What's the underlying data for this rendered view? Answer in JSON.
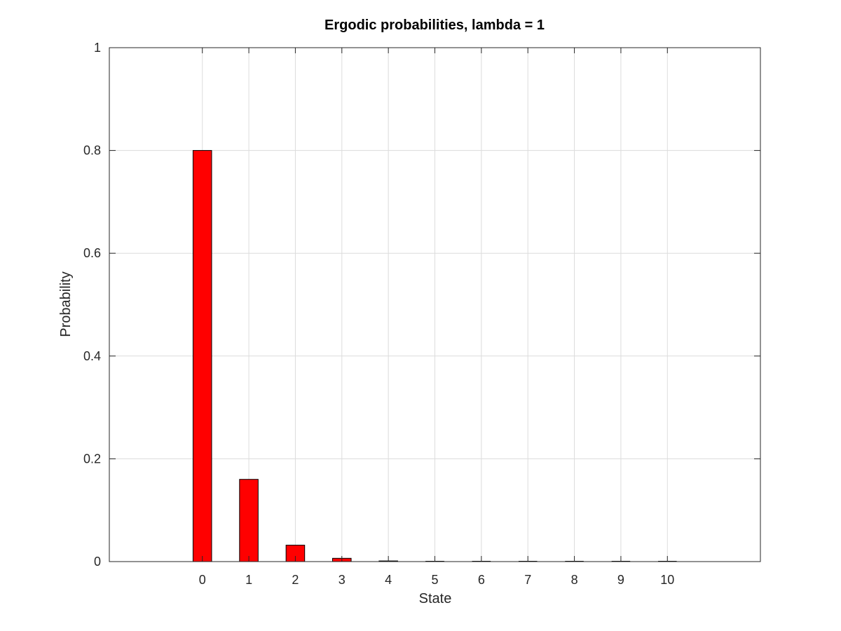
{
  "chart_data": {
    "type": "bar",
    "title": "Ergodic probabilities, lambda = 1",
    "xlabel": "State",
    "ylabel": "Probability",
    "categories": [
      0,
      1,
      2,
      3,
      4,
      5,
      6,
      7,
      8,
      9,
      10
    ],
    "values": [
      0.8,
      0.16,
      0.032,
      0.0064,
      0.00128,
      0.000256,
      5.12e-05,
      1.024e-05,
      2.048e-06,
      4.096e-07,
      8.192e-08
    ],
    "xlim": [
      -2,
      12
    ],
    "ylim": [
      0,
      1
    ],
    "xticks": [
      "0",
      "1",
      "2",
      "3",
      "4",
      "5",
      "6",
      "7",
      "8",
      "9",
      "10"
    ],
    "yticks": [
      "0",
      "0.2",
      "0.4",
      "0.6",
      "0.8",
      "1"
    ],
    "ytick_values": [
      0,
      0.2,
      0.4,
      0.6,
      0.8,
      1
    ],
    "grid": true,
    "bar_color": "#ff0000",
    "bar_edge_color": "#000000",
    "grid_color": "#dcdcdc",
    "axis_color": "#262626"
  }
}
